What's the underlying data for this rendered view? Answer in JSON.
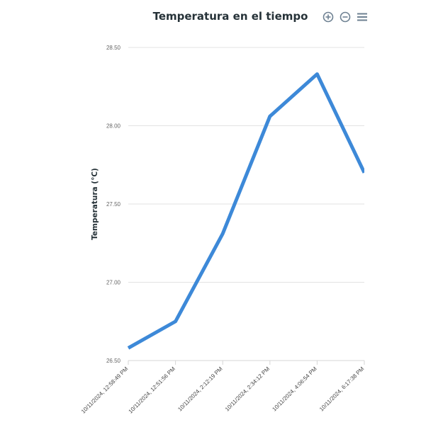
{
  "toolbar": {
    "zoom_in_icon": "zoom-in-icon",
    "zoom_out_icon": "zoom-out-icon",
    "menu_icon": "hamburger-menu-icon"
  },
  "chart_data": {
    "type": "line",
    "title": "Temperatura en el tiempo",
    "ylabel": "Temperatura (°C)",
    "xlabel": "",
    "ylim": [
      26.5,
      28.5
    ],
    "yticks": [
      "26.50",
      "27.00",
      "27.50",
      "28.00",
      "28.50"
    ],
    "grid": true,
    "categories": [
      "10/11/2024, 12:58:49 PM",
      "10/11/2024, 12:51:56 PM",
      "10/11/2024, 2:12:19 PM",
      "10/11/2024, 2:34:12 PM",
      "10/11/2024, 4:06:54 PM",
      "10/11/2024, 6:17:38 PM"
    ],
    "series": [
      {
        "values": [
          26.58,
          26.75,
          27.31,
          28.06,
          28.33,
          27.7
        ]
      }
    ],
    "line_color": "#3d89d8"
  }
}
